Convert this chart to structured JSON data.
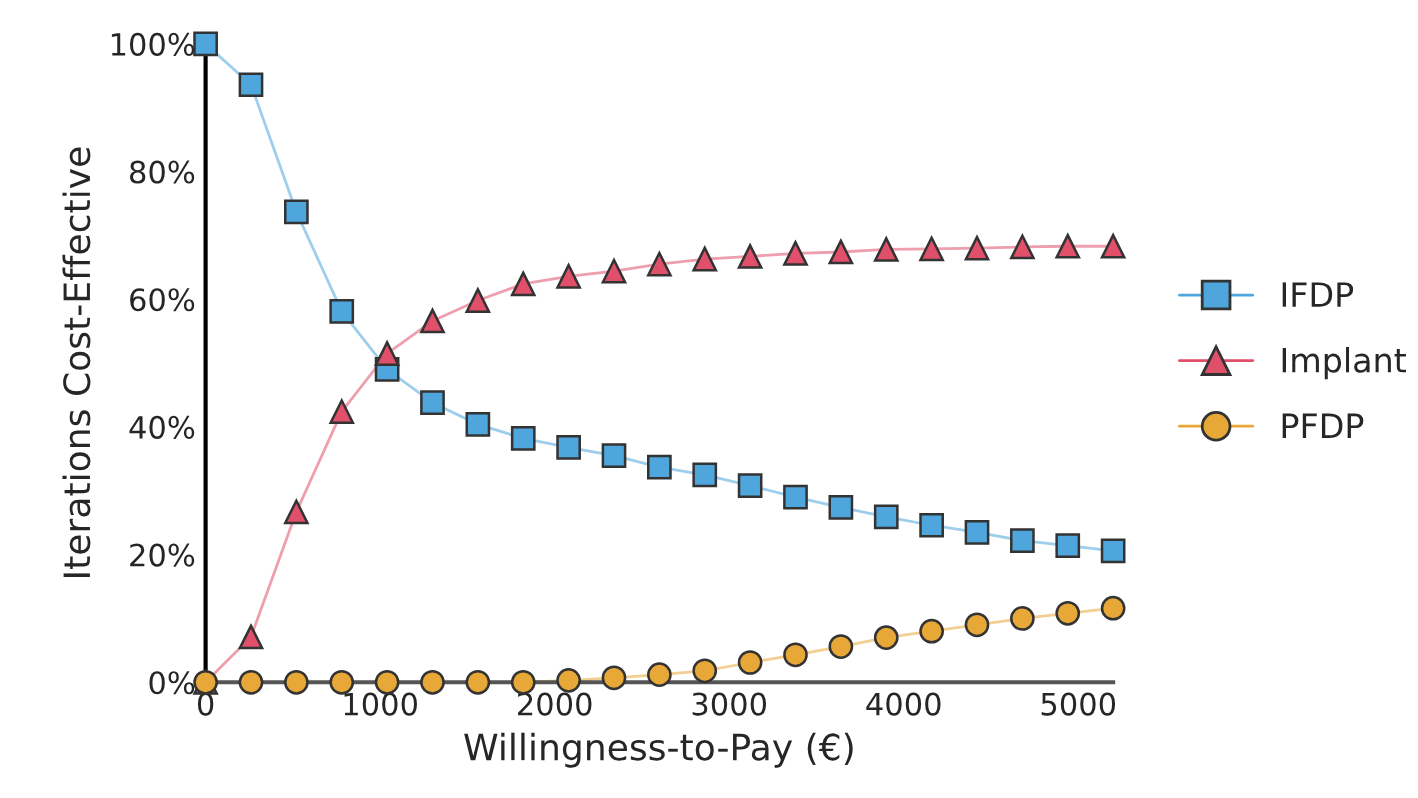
{
  "chart_data": {
    "type": "line",
    "xlabel": "Willingness-to-Pay (€)",
    "ylabel": "Iterations Cost-Effective",
    "x": [
      0,
      260,
      520,
      780,
      1040,
      1300,
      1560,
      1820,
      2080,
      2340,
      2600,
      2860,
      3120,
      3380,
      3640,
      3900,
      4160,
      4420,
      4680,
      4940,
      5200
    ],
    "series": [
      {
        "name": "IFDP",
        "color": "#4ea6dc",
        "marker": "square",
        "values": [
          100,
          93.6,
          73.7,
          58.1,
          49,
          43.8,
          40.4,
          38.2,
          36.8,
          35.5,
          33.7,
          32.5,
          30.8,
          29,
          27.4,
          25.9,
          24.6,
          23.5,
          22.2,
          21.4,
          20.6
        ]
      },
      {
        "name": "Implant",
        "color": "#e0506a",
        "marker": "triangle",
        "values": [
          0,
          7.1,
          26.7,
          42.4,
          51.5,
          56.6,
          59.8,
          62.4,
          63.6,
          64.4,
          65.5,
          66.3,
          66.7,
          67.2,
          67.4,
          67.8,
          67.9,
          68,
          68.2,
          68.3,
          68.3
        ]
      },
      {
        "name": "PFDP",
        "color": "#e8a838",
        "marker": "circle",
        "values": [
          0,
          0,
          0,
          0,
          0,
          0,
          0,
          0,
          0.3,
          0.7,
          1.2,
          1.8,
          3.1,
          4.3,
          5.6,
          7.0,
          8.0,
          9.0,
          10.0,
          10.8,
          11.6
        ]
      }
    ],
    "xlim": [
      0,
      5200
    ],
    "xticks": [
      0,
      1000,
      2000,
      3000,
      4000,
      5000
    ],
    "ylim": [
      0,
      100
    ],
    "yticks": [
      {
        "value": 0,
        "label": "0%"
      },
      {
        "value": 20,
        "label": "20%"
      },
      {
        "value": 40,
        "label": "40%"
      },
      {
        "value": 60,
        "label": "60%"
      },
      {
        "value": 80,
        "label": "80%"
      },
      {
        "value": 100,
        "label": "100%"
      }
    ],
    "grid": false,
    "legend": "right",
    "line_style": "solid"
  }
}
